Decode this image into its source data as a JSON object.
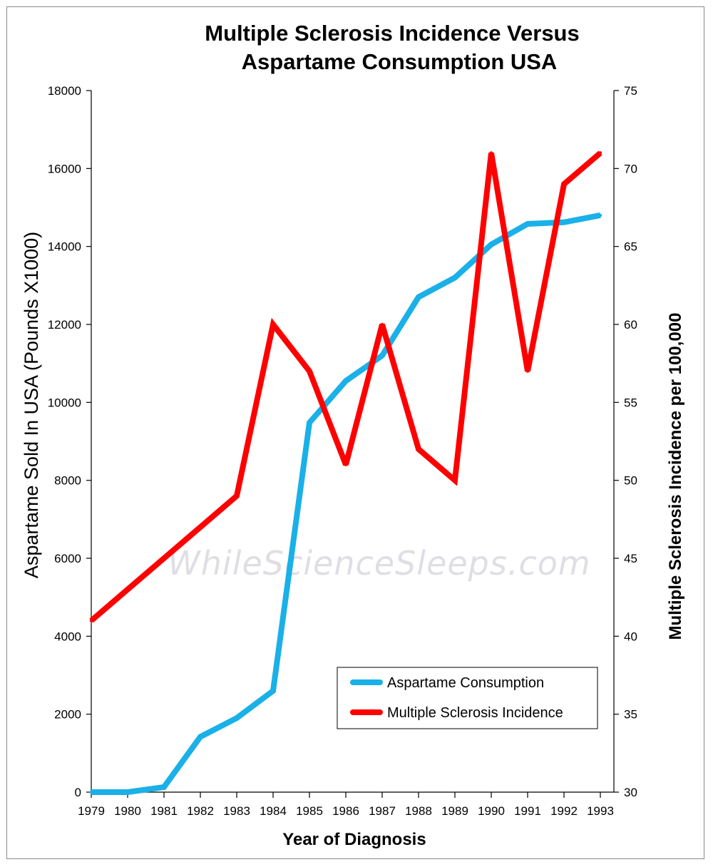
{
  "chart_data": {
    "type": "line",
    "title_lines": [
      "Multiple Sclerosis Incidence Versus",
      "Aspartame Consumption USA"
    ],
    "xlabel": "Year of Diagnosis",
    "ylabel_left": "Aspartame Sold In USA  (Pounds X1000)",
    "ylabel_right": "Multiple Sclerosis Incidence per 100,000",
    "x": [
      "1979",
      "1980",
      "1981",
      "1982",
      "1983",
      "1984",
      "1985",
      "1986",
      "1987",
      "1988",
      "1989",
      "1990",
      "1991",
      "1992",
      "1993"
    ],
    "y_left_ticks": [
      "0",
      "2000",
      "4000",
      "6000",
      "8000",
      "10000",
      "12000",
      "14000",
      "16000",
      "18000"
    ],
    "y_right_ticks": [
      "30",
      "35",
      "40",
      "45",
      "50",
      "55",
      "60",
      "65",
      "70",
      "75"
    ],
    "ylim_left": [
      0,
      18000
    ],
    "ylim_right": [
      30,
      75
    ],
    "series": [
      {
        "name": "Aspartame Consumption",
        "axis": "left",
        "color": "#1ab0e8",
        "values": [
          0,
          0,
          130,
          1420,
          1900,
          2600,
          9480,
          10550,
          11200,
          12700,
          13200,
          14050,
          14580,
          14620,
          14800
        ]
      },
      {
        "name": "Multiple Sclerosis Incidence",
        "axis": "right",
        "color": "#ff0000",
        "values": [
          41,
          43,
          45,
          47,
          49,
          60,
          57,
          51,
          60,
          52,
          50,
          71,
          57,
          69,
          71
        ]
      }
    ],
    "legend_position": "lower-right",
    "grid": false
  },
  "watermark": "WhileScienceSleeps.com"
}
